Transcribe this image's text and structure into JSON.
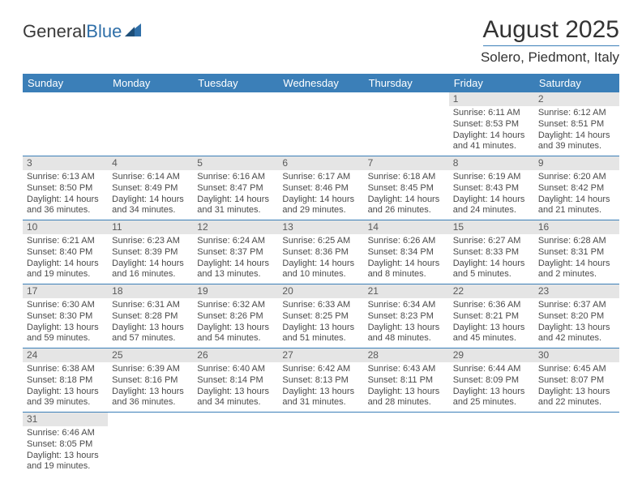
{
  "logo": {
    "text1": "General",
    "text2": "Blue"
  },
  "title": "August 2025",
  "location": "Solero, Piedmont, Italy",
  "colors": {
    "header_bg": "#3b7fb8",
    "header_text": "#ffffff",
    "daynum_bg": "#e5e5e5",
    "daynum_text": "#5a5a5a",
    "border": "#3b7fb8",
    "body_text": "#4a4a4a"
  },
  "weekdays": [
    "Sunday",
    "Monday",
    "Tuesday",
    "Wednesday",
    "Thursday",
    "Friday",
    "Saturday"
  ],
  "labels": {
    "sunrise": "Sunrise:",
    "sunset": "Sunset:",
    "daylight": "Daylight:"
  },
  "days": [
    {
      "n": "",
      "sr": "",
      "ss": "",
      "dl": ""
    },
    {
      "n": "",
      "sr": "",
      "ss": "",
      "dl": ""
    },
    {
      "n": "",
      "sr": "",
      "ss": "",
      "dl": ""
    },
    {
      "n": "",
      "sr": "",
      "ss": "",
      "dl": ""
    },
    {
      "n": "",
      "sr": "",
      "ss": "",
      "dl": ""
    },
    {
      "n": "1",
      "sr": "6:11 AM",
      "ss": "8:53 PM",
      "dl": "14 hours and 41 minutes."
    },
    {
      "n": "2",
      "sr": "6:12 AM",
      "ss": "8:51 PM",
      "dl": "14 hours and 39 minutes."
    },
    {
      "n": "3",
      "sr": "6:13 AM",
      "ss": "8:50 PM",
      "dl": "14 hours and 36 minutes."
    },
    {
      "n": "4",
      "sr": "6:14 AM",
      "ss": "8:49 PM",
      "dl": "14 hours and 34 minutes."
    },
    {
      "n": "5",
      "sr": "6:16 AM",
      "ss": "8:47 PM",
      "dl": "14 hours and 31 minutes."
    },
    {
      "n": "6",
      "sr": "6:17 AM",
      "ss": "8:46 PM",
      "dl": "14 hours and 29 minutes."
    },
    {
      "n": "7",
      "sr": "6:18 AM",
      "ss": "8:45 PM",
      "dl": "14 hours and 26 minutes."
    },
    {
      "n": "8",
      "sr": "6:19 AM",
      "ss": "8:43 PM",
      "dl": "14 hours and 24 minutes."
    },
    {
      "n": "9",
      "sr": "6:20 AM",
      "ss": "8:42 PM",
      "dl": "14 hours and 21 minutes."
    },
    {
      "n": "10",
      "sr": "6:21 AM",
      "ss": "8:40 PM",
      "dl": "14 hours and 19 minutes."
    },
    {
      "n": "11",
      "sr": "6:23 AM",
      "ss": "8:39 PM",
      "dl": "14 hours and 16 minutes."
    },
    {
      "n": "12",
      "sr": "6:24 AM",
      "ss": "8:37 PM",
      "dl": "14 hours and 13 minutes."
    },
    {
      "n": "13",
      "sr": "6:25 AM",
      "ss": "8:36 PM",
      "dl": "14 hours and 10 minutes."
    },
    {
      "n": "14",
      "sr": "6:26 AM",
      "ss": "8:34 PM",
      "dl": "14 hours and 8 minutes."
    },
    {
      "n": "15",
      "sr": "6:27 AM",
      "ss": "8:33 PM",
      "dl": "14 hours and 5 minutes."
    },
    {
      "n": "16",
      "sr": "6:28 AM",
      "ss": "8:31 PM",
      "dl": "14 hours and 2 minutes."
    },
    {
      "n": "17",
      "sr": "6:30 AM",
      "ss": "8:30 PM",
      "dl": "13 hours and 59 minutes."
    },
    {
      "n": "18",
      "sr": "6:31 AM",
      "ss": "8:28 PM",
      "dl": "13 hours and 57 minutes."
    },
    {
      "n": "19",
      "sr": "6:32 AM",
      "ss": "8:26 PM",
      "dl": "13 hours and 54 minutes."
    },
    {
      "n": "20",
      "sr": "6:33 AM",
      "ss": "8:25 PM",
      "dl": "13 hours and 51 minutes."
    },
    {
      "n": "21",
      "sr": "6:34 AM",
      "ss": "8:23 PM",
      "dl": "13 hours and 48 minutes."
    },
    {
      "n": "22",
      "sr": "6:36 AM",
      "ss": "8:21 PM",
      "dl": "13 hours and 45 minutes."
    },
    {
      "n": "23",
      "sr": "6:37 AM",
      "ss": "8:20 PM",
      "dl": "13 hours and 42 minutes."
    },
    {
      "n": "24",
      "sr": "6:38 AM",
      "ss": "8:18 PM",
      "dl": "13 hours and 39 minutes."
    },
    {
      "n": "25",
      "sr": "6:39 AM",
      "ss": "8:16 PM",
      "dl": "13 hours and 36 minutes."
    },
    {
      "n": "26",
      "sr": "6:40 AM",
      "ss": "8:14 PM",
      "dl": "13 hours and 34 minutes."
    },
    {
      "n": "27",
      "sr": "6:42 AM",
      "ss": "8:13 PM",
      "dl": "13 hours and 31 minutes."
    },
    {
      "n": "28",
      "sr": "6:43 AM",
      "ss": "8:11 PM",
      "dl": "13 hours and 28 minutes."
    },
    {
      "n": "29",
      "sr": "6:44 AM",
      "ss": "8:09 PM",
      "dl": "13 hours and 25 minutes."
    },
    {
      "n": "30",
      "sr": "6:45 AM",
      "ss": "8:07 PM",
      "dl": "13 hours and 22 minutes."
    },
    {
      "n": "31",
      "sr": "6:46 AM",
      "ss": "8:05 PM",
      "dl": "13 hours and 19 minutes."
    }
  ]
}
